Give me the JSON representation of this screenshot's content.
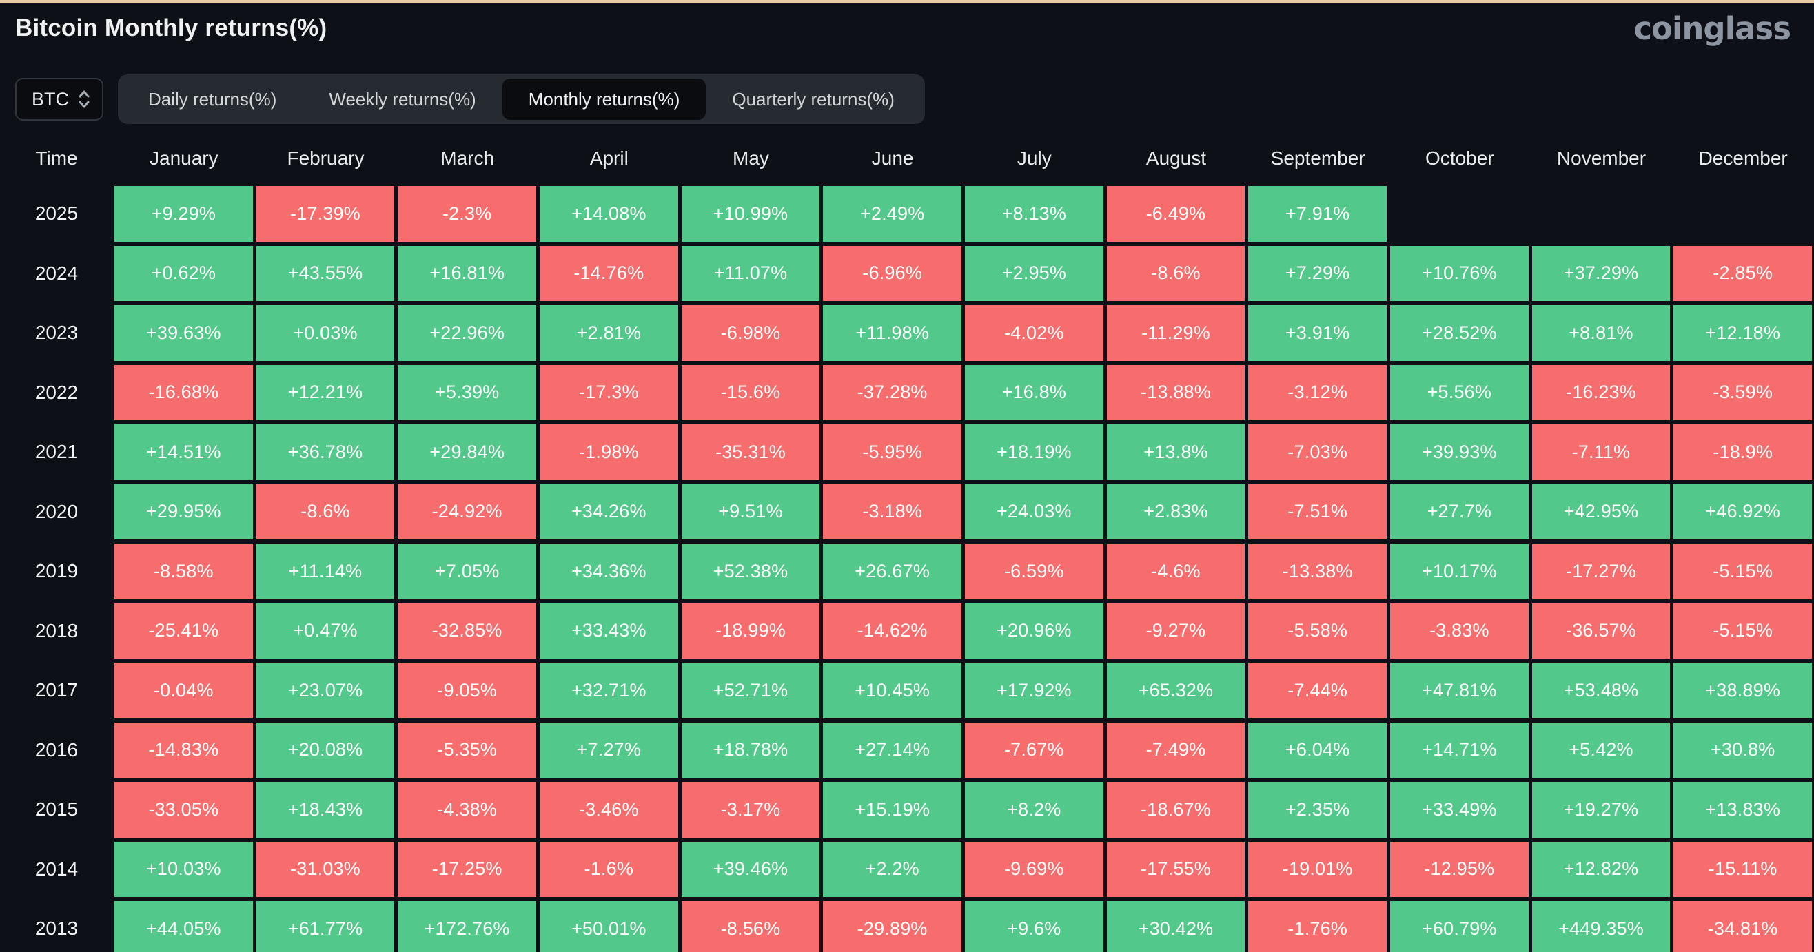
{
  "page": {
    "title": "Bitcoin Monthly returns(%)",
    "logo": "coinglass"
  },
  "controls": {
    "coin_selector": {
      "value": "BTC"
    },
    "tabs": [
      {
        "label": "Daily returns(%)",
        "active": false
      },
      {
        "label": "Weekly returns(%)",
        "active": false
      },
      {
        "label": "Monthly returns(%)",
        "active": true
      },
      {
        "label": "Quarterly returns(%)",
        "active": false
      }
    ]
  },
  "table": {
    "time_header": "Time",
    "months": [
      "January",
      "February",
      "March",
      "April",
      "May",
      "June",
      "July",
      "August",
      "September",
      "October",
      "November",
      "December"
    ],
    "rows": [
      {
        "year": "2025",
        "values": [
          "+9.29%",
          "-17.39%",
          "-2.3%",
          "+14.08%",
          "+10.99%",
          "+2.49%",
          "+8.13%",
          "-6.49%",
          "+7.91%",
          null,
          null,
          null
        ]
      },
      {
        "year": "2024",
        "values": [
          "+0.62%",
          "+43.55%",
          "+16.81%",
          "-14.76%",
          "+11.07%",
          "-6.96%",
          "+2.95%",
          "-8.6%",
          "+7.29%",
          "+10.76%",
          "+37.29%",
          "-2.85%"
        ]
      },
      {
        "year": "2023",
        "values": [
          "+39.63%",
          "+0.03%",
          "+22.96%",
          "+2.81%",
          "-6.98%",
          "+11.98%",
          "-4.02%",
          "-11.29%",
          "+3.91%",
          "+28.52%",
          "+8.81%",
          "+12.18%"
        ]
      },
      {
        "year": "2022",
        "values": [
          "-16.68%",
          "+12.21%",
          "+5.39%",
          "-17.3%",
          "-15.6%",
          "-37.28%",
          "+16.8%",
          "-13.88%",
          "-3.12%",
          "+5.56%",
          "-16.23%",
          "-3.59%"
        ]
      },
      {
        "year": "2021",
        "values": [
          "+14.51%",
          "+36.78%",
          "+29.84%",
          "-1.98%",
          "-35.31%",
          "-5.95%",
          "+18.19%",
          "+13.8%",
          "-7.03%",
          "+39.93%",
          "-7.11%",
          "-18.9%"
        ]
      },
      {
        "year": "2020",
        "values": [
          "+29.95%",
          "-8.6%",
          "-24.92%",
          "+34.26%",
          "+9.51%",
          "-3.18%",
          "+24.03%",
          "+2.83%",
          "-7.51%",
          "+27.7%",
          "+42.95%",
          "+46.92%"
        ]
      },
      {
        "year": "2019",
        "values": [
          "-8.58%",
          "+11.14%",
          "+7.05%",
          "+34.36%",
          "+52.38%",
          "+26.67%",
          "-6.59%",
          "-4.6%",
          "-13.38%",
          "+10.17%",
          "-17.27%",
          "-5.15%"
        ]
      },
      {
        "year": "2018",
        "values": [
          "-25.41%",
          "+0.47%",
          "-32.85%",
          "+33.43%",
          "-18.99%",
          "-14.62%",
          "+20.96%",
          "-9.27%",
          "-5.58%",
          "-3.83%",
          "-36.57%",
          "-5.15%"
        ]
      },
      {
        "year": "2017",
        "values": [
          "-0.04%",
          "+23.07%",
          "-9.05%",
          "+32.71%",
          "+52.71%",
          "+10.45%",
          "+17.92%",
          "+65.32%",
          "-7.44%",
          "+47.81%",
          "+53.48%",
          "+38.89%"
        ]
      },
      {
        "year": "2016",
        "values": [
          "-14.83%",
          "+20.08%",
          "-5.35%",
          "+7.27%",
          "+18.78%",
          "+27.14%",
          "-7.67%",
          "-7.49%",
          "+6.04%",
          "+14.71%",
          "+5.42%",
          "+30.8%"
        ]
      },
      {
        "year": "2015",
        "values": [
          "-33.05%",
          "+18.43%",
          "-4.38%",
          "-3.46%",
          "-3.17%",
          "+15.19%",
          "+8.2%",
          "-18.67%",
          "+2.35%",
          "+33.49%",
          "+19.27%",
          "+13.83%"
        ]
      },
      {
        "year": "2014",
        "values": [
          "+10.03%",
          "-31.03%",
          "-17.25%",
          "-1.6%",
          "+39.46%",
          "+2.2%",
          "-9.69%",
          "-17.55%",
          "-19.01%",
          "-12.95%",
          "+12.82%",
          "-15.11%"
        ]
      },
      {
        "year": "2013",
        "values": [
          "+44.05%",
          "+61.77%",
          "+172.76%",
          "+50.01%",
          "-8.56%",
          "-29.89%",
          "+9.6%",
          "+30.42%",
          "-1.76%",
          "+60.79%",
          "+449.35%",
          "-34.81%"
        ]
      }
    ]
  },
  "colors": {
    "positive": "#52c98a",
    "negative": "#f76d6d",
    "background": "#0d1016",
    "top_accent_line": "#e8caa9"
  }
}
